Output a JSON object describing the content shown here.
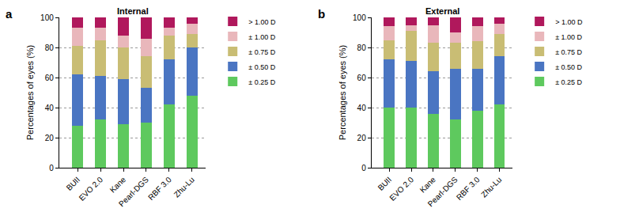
{
  "chart_data": [
    {
      "type": "bar",
      "stacked": true,
      "title": "Internal",
      "annotations": [
        {
          "text": "a"
        }
      ],
      "y_label": "Percentages of eyes (%)",
      "categories": [
        "BUII",
        "EVO 2.0",
        "Kane",
        "Pearl-DGS",
        "RBF 3.0",
        "Zhu-Lu"
      ],
      "series": [
        {
          "name": "± 0.25 D",
          "color": "#5ec95e",
          "values": [
            28,
            32,
            29,
            30,
            42,
            48
          ]
        },
        {
          "name": "± 0.50 D",
          "color": "#4a75c2",
          "values": [
            34,
            29,
            30,
            23,
            30,
            32
          ]
        },
        {
          "name": "± 0.75 D",
          "color": "#c9bd74",
          "values": [
            19,
            24,
            21,
            21,
            16,
            9
          ]
        },
        {
          "name": "± 1.00 D",
          "color": "#e9b7bb",
          "values": [
            12,
            8,
            8,
            12,
            5,
            7
          ]
        },
        {
          "name": "> 1.00 D",
          "color": "#b0185c",
          "values": [
            7,
            7,
            12,
            14,
            7,
            4
          ]
        }
      ],
      "ylim": [
        0,
        100
      ],
      "yticks": [
        0,
        20,
        40,
        60,
        80,
        100
      ],
      "grid": true,
      "legend": "upper right"
    },
    {
      "type": "bar",
      "stacked": true,
      "title": "External",
      "annotations": [
        {
          "text": "b"
        }
      ],
      "y_label": "Percentages of eyes (%)",
      "categories": [
        "BUII",
        "EVO 2.0",
        "Kane",
        "Pearl-DGS",
        "RBF 3.0",
        "Zhu-Lu"
      ],
      "series": [
        {
          "name": "± 0.25 D",
          "color": "#5ec95e",
          "values": [
            40,
            40,
            36,
            32,
            38,
            42
          ]
        },
        {
          "name": "± 0.50 D",
          "color": "#4a75c2",
          "values": [
            32,
            31,
            28,
            34,
            28,
            32
          ]
        },
        {
          "name": "± 0.75 D",
          "color": "#c9bd74",
          "values": [
            13,
            20,
            19,
            17,
            18,
            15
          ]
        },
        {
          "name": "± 1.00 D",
          "color": "#e9b7bb",
          "values": [
            9,
            4,
            12,
            7,
            10,
            7
          ]
        },
        {
          "name": "> 1.00 D",
          "color": "#b0185c",
          "values": [
            6,
            5,
            5,
            10,
            6,
            4
          ]
        }
      ],
      "ylim": [
        0,
        100
      ],
      "yticks": [
        0,
        20,
        40,
        60,
        80,
        100
      ],
      "grid": true,
      "legend": "upper right"
    }
  ]
}
